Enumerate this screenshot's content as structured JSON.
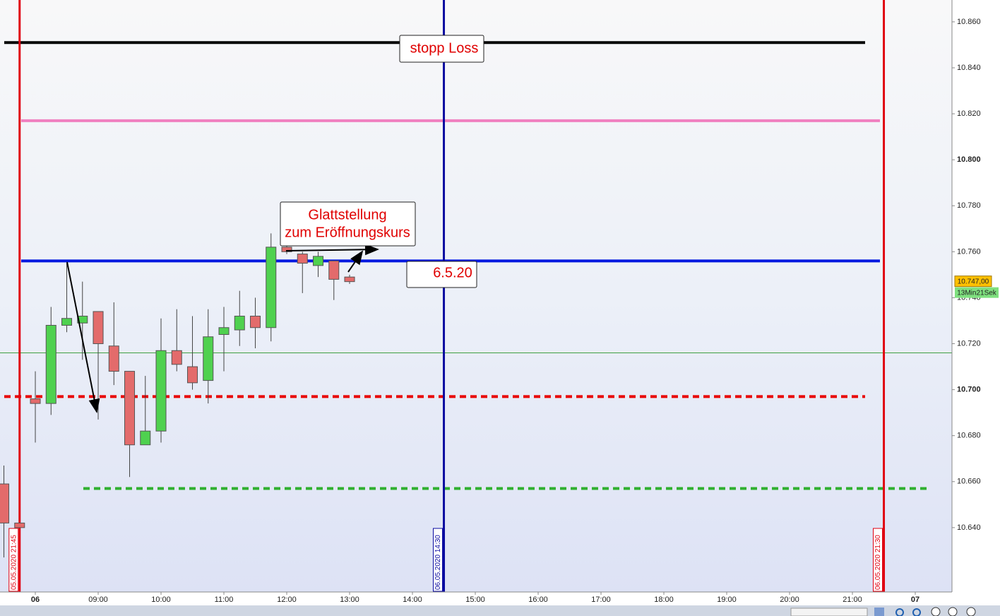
{
  "chart_data": {
    "type": "candlestick",
    "x": [
      7.5,
      7.75,
      8,
      8.25,
      8.5,
      8.75,
      9,
      9.25,
      9.5,
      9.75,
      10,
      10.25,
      10.5,
      10.75,
      11,
      11.25,
      11.5,
      11.75,
      12,
      12.25,
      12.5,
      12.75,
      13
    ],
    "open": [
      10.659,
      10.642,
      10.696,
      10.694,
      10.728,
      10.729,
      10.734,
      10.719,
      10.708,
      10.676,
      10.682,
      10.717,
      10.71,
      10.704,
      10.724,
      10.726,
      10.732,
      10.727,
      10.762,
      10.759,
      10.754,
      10.756,
      10.749
    ],
    "high": [
      10.667,
      10.642,
      10.708,
      10.736,
      10.755,
      10.747,
      10.734,
      10.738,
      10.708,
      10.706,
      10.731,
      10.735,
      10.732,
      10.735,
      10.736,
      10.743,
      10.74,
      10.768,
      10.766,
      10.76,
      10.76,
      10.756,
      10.75
    ],
    "low": [
      10.627,
      10.64,
      10.677,
      10.689,
      10.725,
      10.713,
      10.687,
      10.702,
      10.662,
      10.676,
      10.677,
      10.708,
      10.7,
      10.694,
      10.708,
      10.719,
      10.718,
      10.721,
      10.759,
      10.742,
      10.749,
      10.739,
      10.746
    ],
    "close": [
      10.642,
      10.64,
      10.694,
      10.728,
      10.731,
      10.732,
      10.72,
      10.708,
      10.676,
      10.682,
      10.717,
      10.711,
      10.703,
      10.723,
      10.727,
      10.732,
      10.727,
      10.762,
      10.76,
      10.755,
      10.758,
      10.748,
      10.747
    ],
    "up_color": "#4fd14f",
    "down_color": "#e36b6b",
    "xlim": [
      7.438,
      22.584
    ],
    "ylim": [
      10.612,
      10.8695
    ],
    "xticks": [
      {
        "value": 8,
        "label": "06"
      },
      {
        "value": 9,
        "label": "09:00"
      },
      {
        "value": 10,
        "label": "10:00"
      },
      {
        "value": 11,
        "label": "11:00"
      },
      {
        "value": 12,
        "label": "12:00"
      },
      {
        "value": 13,
        "label": "13:00"
      },
      {
        "value": 14,
        "label": "14:00"
      },
      {
        "value": 15,
        "label": "15:00"
      },
      {
        "value": 16,
        "label": "16:00"
      },
      {
        "value": 17,
        "label": "17:00"
      },
      {
        "value": 18,
        "label": "18:00"
      },
      {
        "value": 19,
        "label": "19:00"
      },
      {
        "value": 20,
        "label": "20:00"
      },
      {
        "value": 21,
        "label": "21:00"
      },
      {
        "value": 22,
        "label": "07"
      }
    ],
    "yticks": [
      {
        "value": 10.64,
        "label": "10.640"
      },
      {
        "value": 10.66,
        "label": "10.660"
      },
      {
        "value": 10.68,
        "label": "10.680"
      },
      {
        "value": 10.7,
        "label": "10.700"
      },
      {
        "value": 10.72,
        "label": "10.720"
      },
      {
        "value": 10.74,
        "label": "10.740"
      },
      {
        "value": 10.76,
        "label": "10.760"
      },
      {
        "value": 10.78,
        "label": "10.780"
      },
      {
        "value": 10.8,
        "label": "10.800"
      },
      {
        "value": 10.82,
        "label": "10.820"
      },
      {
        "value": 10.84,
        "label": "10.840"
      },
      {
        "value": 10.86,
        "label": "10.860"
      }
    ],
    "levels": [
      {
        "value": 10.851,
        "color": "#000000",
        "dashed": false
      },
      {
        "value": 10.817,
        "color": "#f080c0",
        "dashed": false
      },
      {
        "value": 10.756,
        "color": "#0018e0",
        "dashed": false
      },
      {
        "value": 10.716,
        "color": "#40a040",
        "dashed": false
      },
      {
        "value": 10.697,
        "color": "#e80000",
        "dashed": true
      },
      {
        "value": 10.657,
        "color": "#30b030",
        "dashed": true
      }
    ],
    "vlines": [
      {
        "value": 7.75,
        "label": "05.05.2020 21:45",
        "color": "#e00010"
      },
      {
        "value": 14.5,
        "label": "06.05.2020 14:30",
        "color": "#0a0aa0"
      },
      {
        "value": 21.5,
        "label": "06.05.2020 21:30",
        "color": "#e00010"
      }
    ],
    "annotations": [
      "stopp Loss",
      "Glattstellung",
      "zum Eröffnungskurs",
      "6.5.20"
    ],
    "last_price": {
      "value": 10.747,
      "label": "10.747,00"
    },
    "timer": "13Min21Sek"
  }
}
